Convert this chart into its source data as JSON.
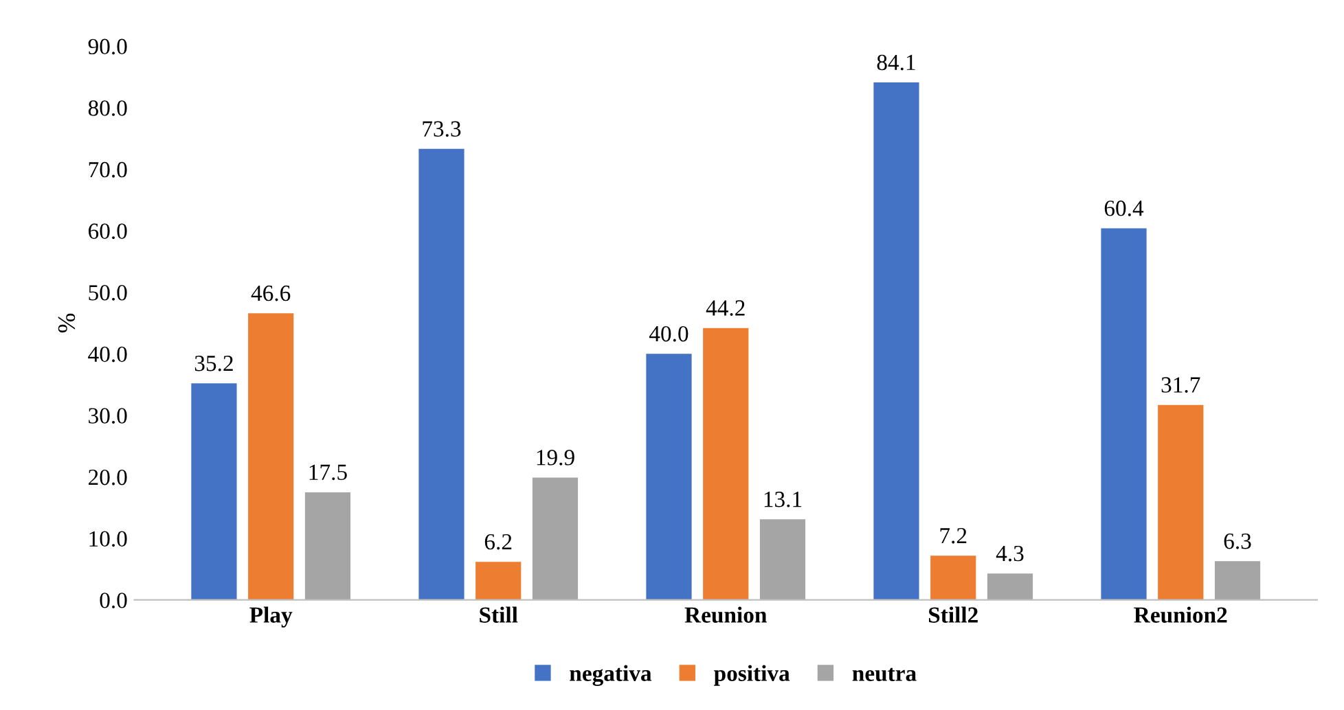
{
  "chart_data": {
    "type": "bar",
    "ylabel": "%",
    "categories": [
      "Play",
      "Still",
      "Reunion",
      "Still2",
      "Reunion2"
    ],
    "series": [
      {
        "name": "negativa",
        "color": "#4472c4",
        "values": [
          35.2,
          73.3,
          40.0,
          84.1,
          60.4
        ],
        "value_labels": [
          "35.2",
          "73.3",
          "40.0",
          "84.1",
          "60.4"
        ]
      },
      {
        "name": "positiva",
        "color": "#ed7d31",
        "values": [
          46.6,
          6.2,
          44.2,
          7.2,
          31.7
        ],
        "value_labels": [
          "46.6",
          "6.2",
          "44.2",
          "7.2",
          "31.7"
        ]
      },
      {
        "name": "neutra",
        "color": "#a5a5a5",
        "values": [
          17.5,
          19.9,
          13.1,
          4.3,
          6.3
        ],
        "value_labels": [
          "17.5",
          "19.9",
          "13.1",
          "4.3",
          "6.3"
        ]
      }
    ],
    "ylim": [
      0,
      90
    ],
    "yticks": [
      {
        "value": 0,
        "label": "0.0"
      },
      {
        "value": 10,
        "label": "10.0"
      },
      {
        "value": 20,
        "label": "20.0"
      },
      {
        "value": 30,
        "label": "30.0"
      },
      {
        "value": 40,
        "label": "40.0"
      },
      {
        "value": 50,
        "label": "50.0"
      },
      {
        "value": 60,
        "label": "60.0"
      },
      {
        "value": 70,
        "label": "70.0"
      },
      {
        "value": 80,
        "label": "80.0"
      },
      {
        "value": 90,
        "label": "90.0"
      }
    ],
    "grid": false,
    "legend": "bottom"
  }
}
